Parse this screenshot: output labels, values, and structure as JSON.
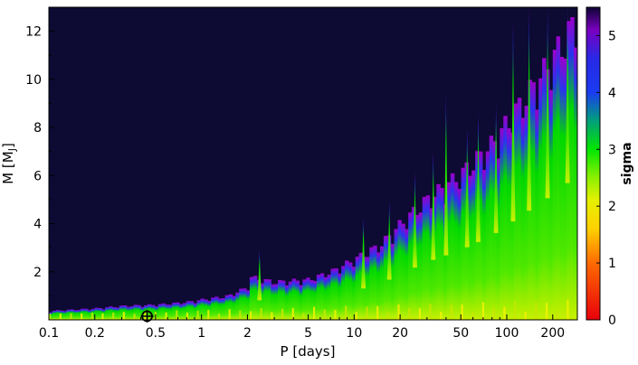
{
  "chart_data": {
    "type": "heatmap",
    "title": "",
    "xlabel": "P [days]",
    "ylabel": "M [M",
    "ylabel_sub": "J",
    "ylabel_tail": "]",
    "x_scale": "log",
    "xlim": [
      0.1,
      290
    ],
    "ylim": [
      0,
      13
    ],
    "x_ticks": [
      {
        "value": 0.1,
        "label": "0.1"
      },
      {
        "value": 0.2,
        "label": "0.2"
      },
      {
        "value": 0.5,
        "label": "0.5"
      },
      {
        "value": 1,
        "label": "1"
      },
      {
        "value": 2,
        "label": "2"
      },
      {
        "value": 5,
        "label": "5"
      },
      {
        "value": 10,
        "label": "10"
      },
      {
        "value": 20,
        "label": "20"
      },
      {
        "value": 50,
        "label": "50"
      },
      {
        "value": 100,
        "label": "100"
      },
      {
        "value": 200,
        "label": "200"
      }
    ],
    "y_ticks": [
      {
        "value": 2,
        "label": "2"
      },
      {
        "value": 4,
        "label": "4"
      },
      {
        "value": 6,
        "label": "6"
      },
      {
        "value": 8,
        "label": "8"
      },
      {
        "value": 10,
        "label": "10"
      },
      {
        "value": 12,
        "label": "12"
      }
    ],
    "colorbar": {
      "label": "sigma",
      "range": [
        0,
        5.5
      ],
      "ticks": [
        {
          "value": 0,
          "label": "0"
        },
        {
          "value": 1,
          "label": "1"
        },
        {
          "value": 2,
          "label": "2"
        },
        {
          "value": 3,
          "label": "3"
        },
        {
          "value": 4,
          "label": "4"
        },
        {
          "value": 5,
          "label": "5"
        }
      ],
      "stops": [
        {
          "value": 0,
          "color": "#e8000b"
        },
        {
          "value": 1.0,
          "color": "#ff6a00"
        },
        {
          "value": 1.6,
          "color": "#ffd000"
        },
        {
          "value": 2.1,
          "color": "#e6f000"
        },
        {
          "value": 2.5,
          "color": "#8cf000"
        },
        {
          "value": 3.0,
          "color": "#00e600"
        },
        {
          "value": 3.5,
          "color": "#00a07a"
        },
        {
          "value": 4.0,
          "color": "#1a3cf0"
        },
        {
          "value": 4.6,
          "color": "#2828e6"
        },
        {
          "value": 5.1,
          "color": "#7a00c0"
        },
        {
          "value": 5.5,
          "color": "#0d0433"
        }
      ]
    },
    "background_color": "#0d0a33",
    "marker": {
      "x": 0.44,
      "y": 0.15,
      "shape": "circle-cross"
    },
    "boundary": [
      {
        "x": 0.1,
        "m": 0.35
      },
      {
        "x": 0.2,
        "m": 0.45
      },
      {
        "x": 0.3,
        "m": 0.55
      },
      {
        "x": 0.5,
        "m": 0.6
      },
      {
        "x": 0.8,
        "m": 0.7
      },
      {
        "x": 1.0,
        "m": 0.8
      },
      {
        "x": 1.5,
        "m": 0.95
      },
      {
        "x": 2.0,
        "m": 1.3
      },
      {
        "x": 2.1,
        "m": 1.7
      },
      {
        "x": 3.0,
        "m": 1.5
      },
      {
        "x": 5.0,
        "m": 1.6
      },
      {
        "x": 7.0,
        "m": 1.9
      },
      {
        "x": 10.0,
        "m": 2.4
      },
      {
        "x": 15.0,
        "m": 3.0
      },
      {
        "x": 20.0,
        "m": 3.8
      },
      {
        "x": 30.0,
        "m": 4.8
      },
      {
        "x": 50.0,
        "m": 5.8
      },
      {
        "x": 80.0,
        "m": 7.0
      },
      {
        "x": 120.0,
        "m": 8.5
      },
      {
        "x": 180.0,
        "m": 10.0
      },
      {
        "x": 290.0,
        "m": 12.0
      }
    ],
    "spikes": [
      {
        "x": 2.4,
        "m": 2.9
      },
      {
        "x": 11.5,
        "m": 4.3
      },
      {
        "x": 17.0,
        "m": 5.0
      },
      {
        "x": 25.0,
        "m": 6.2
      },
      {
        "x": 33.0,
        "m": 7.0
      },
      {
        "x": 40.0,
        "m": 9.5
      },
      {
        "x": 55.0,
        "m": 8.0
      },
      {
        "x": 65.0,
        "m": 8.6
      },
      {
        "x": 85.0,
        "m": 9.0
      },
      {
        "x": 110.0,
        "m": 12.5
      },
      {
        "x": 140.0,
        "m": 13.0
      },
      {
        "x": 185.0,
        "m": 13.0
      },
      {
        "x": 250.0,
        "m": 13.0
      }
    ]
  }
}
